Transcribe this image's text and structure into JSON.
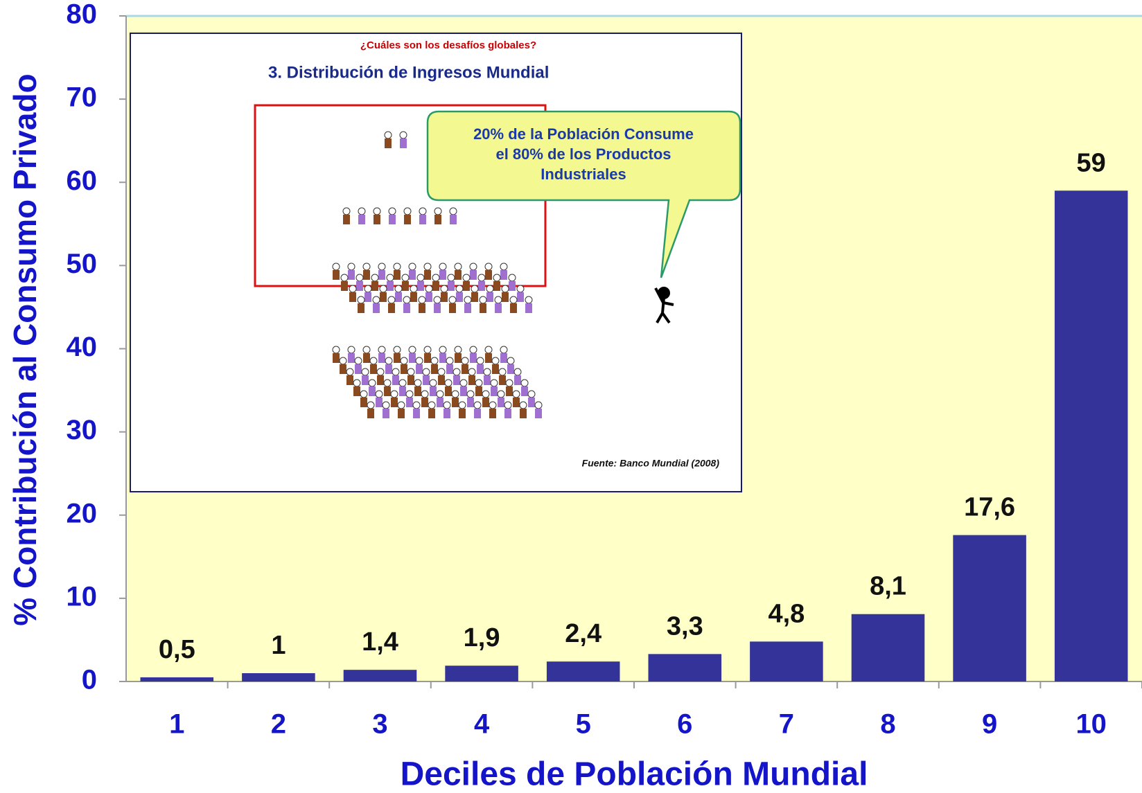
{
  "chart_data": {
    "type": "bar",
    "x_label": "Deciles de Población Mundial",
    "y_label": "% Contribución al Consumo Privado",
    "categories": [
      "1",
      "2",
      "3",
      "4",
      "5",
      "6",
      "7",
      "8",
      "9",
      "10"
    ],
    "values": [
      0.5,
      1,
      1.4,
      1.9,
      2.4,
      3.3,
      4.8,
      8.1,
      17.6,
      59
    ],
    "value_labels": [
      "0,5",
      "1",
      "1,4",
      "1,9",
      "2,4",
      "3,3",
      "4,8",
      "8,1",
      "17,6",
      "59"
    ],
    "color": "#333399",
    "ylim": [
      0,
      80
    ],
    "yticks": [
      0,
      10,
      20,
      30,
      40,
      50,
      60,
      70,
      80
    ],
    "grid": false
  },
  "inset": {
    "kicker": "¿Cuáles son los desafíos globales?",
    "title": "3. Distribución de Ingresos Mundial",
    "callout": [
      "20% de la Población Consume",
      "el 80% de los Productos",
      "Industriales"
    ],
    "source": "Fuente: Banco Mundial (2008)"
  }
}
